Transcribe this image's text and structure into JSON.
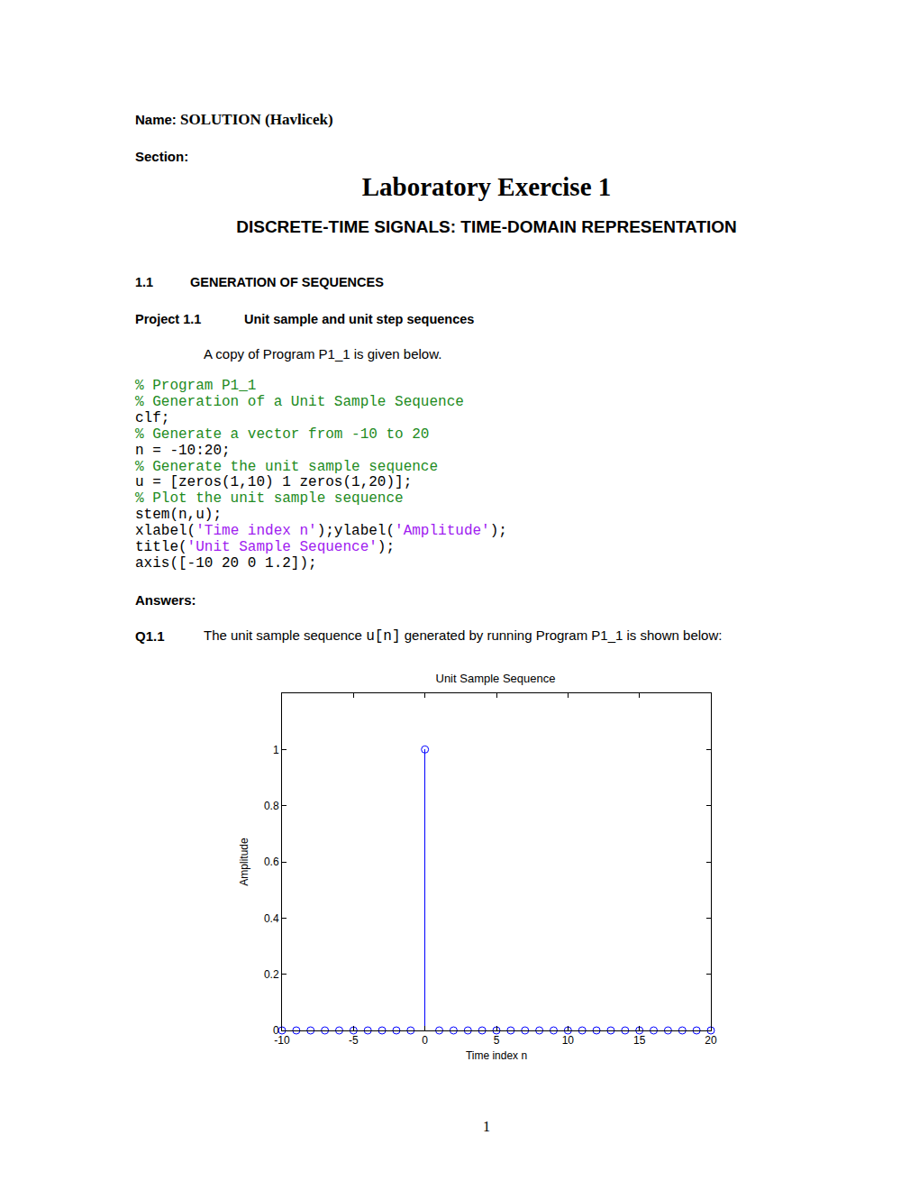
{
  "header": {
    "name_label": "Name:",
    "name_value": "SOLUTION (Havlicek)",
    "section_label": "Section:"
  },
  "title": "Laboratory Exercise 1",
  "subtitle": "DISCRETE-TIME SIGNALS: TIME-DOMAIN REPRESENTATION",
  "section": {
    "number": "1.1",
    "heading": "GENERATION OF SEQUENCES"
  },
  "project": {
    "number": "Project 1.1",
    "heading": "Unit sample and unit step sequences"
  },
  "intro": "A copy of Program P1_1 is given below.",
  "code": [
    [
      {
        "text": "% Program P1_1",
        "style": "comment"
      }
    ],
    [
      {
        "text": "% Generation of a Unit Sample Sequence",
        "style": "comment"
      }
    ],
    [
      {
        "text": "clf;",
        "style": "plain"
      }
    ],
    [
      {
        "text": "% Generate a vector from -10 to 20",
        "style": "comment"
      }
    ],
    [
      {
        "text": "n = -10:20;",
        "style": "plain"
      }
    ],
    [
      {
        "text": "% Generate the unit sample sequence",
        "style": "comment"
      }
    ],
    [
      {
        "text": "u = [zeros(1,10) 1 zeros(1,20)];",
        "style": "plain"
      }
    ],
    [
      {
        "text": "% Plot the unit sample sequence",
        "style": "comment"
      }
    ],
    [
      {
        "text": "stem(n,u);",
        "style": "plain"
      }
    ],
    [
      {
        "text": "xlabel(",
        "style": "plain"
      },
      {
        "text": "'Time index n'",
        "style": "string"
      },
      {
        "text": ");ylabel(",
        "style": "plain"
      },
      {
        "text": "'Amplitude'",
        "style": "string"
      },
      {
        "text": ");",
        "style": "plain"
      }
    ],
    [
      {
        "text": "title(",
        "style": "plain"
      },
      {
        "text": "'Unit Sample Sequence'",
        "style": "string"
      },
      {
        "text": ");",
        "style": "plain"
      }
    ],
    [
      {
        "text": "axis([-10 20 0 1.2]);",
        "style": "plain"
      }
    ]
  ],
  "answers_label": "Answers:",
  "question": {
    "number": "Q1.1",
    "parts": [
      {
        "text": "The unit sample sequence ",
        "style": "plain"
      },
      {
        "text": "u[n]",
        "style": "code"
      },
      {
        "text": " generated by running Program P1_1 is shown below:",
        "style": "plain"
      }
    ]
  },
  "chart_data": {
    "type": "stem",
    "title": "Unit Sample Sequence",
    "x_label": "Time index n",
    "y_label": "Amplitude",
    "x": [
      -10,
      -9,
      -8,
      -7,
      -6,
      -5,
      -4,
      -3,
      -2,
      -1,
      0,
      1,
      2,
      3,
      4,
      5,
      6,
      7,
      8,
      9,
      10,
      11,
      12,
      13,
      14,
      15,
      16,
      17,
      18,
      19,
      20
    ],
    "values": [
      0,
      0,
      0,
      0,
      0,
      0,
      0,
      0,
      0,
      0,
      1,
      0,
      0,
      0,
      0,
      0,
      0,
      0,
      0,
      0,
      0,
      0,
      0,
      0,
      0,
      0,
      0,
      0,
      0,
      0,
      0
    ],
    "color": "#0000ff",
    "marker": "circle-open",
    "xlim": [
      -10,
      20
    ],
    "ylim": [
      0,
      1.2
    ],
    "xticks": [
      -10,
      -5,
      0,
      5,
      10,
      15,
      20
    ],
    "yticks": [
      0,
      0.2,
      0.4,
      0.6,
      0.8,
      1
    ],
    "grid": false
  },
  "page_number": "1"
}
